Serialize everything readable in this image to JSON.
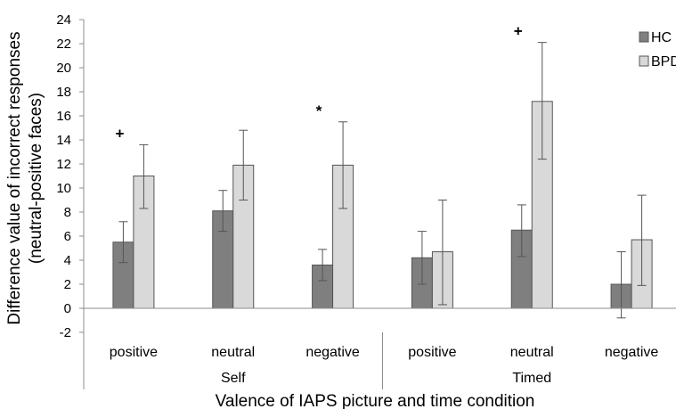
{
  "chart_data": {
    "type": "bar",
    "categories": [
      "positive",
      "neutral",
      "negative",
      "positive",
      "neutral",
      "negative"
    ],
    "groups": [
      {
        "label": "Self",
        "categories": [
          "positive",
          "neutral",
          "negative"
        ]
      },
      {
        "label": "Timed",
        "categories": [
          "positive",
          "neutral",
          "negative"
        ]
      }
    ],
    "series": [
      {
        "name": "HC",
        "color": "#7f7f7f",
        "values": [
          5.5,
          8.1,
          3.6,
          4.2,
          6.5,
          2.0
        ],
        "error_low": [
          3.8,
          6.4,
          2.3,
          2.0,
          4.3,
          -0.8
        ],
        "error_high": [
          7.2,
          9.8,
          4.9,
          6.4,
          8.6,
          4.7
        ]
      },
      {
        "name": "BPD",
        "color": "#d9d9d9",
        "values": [
          11.0,
          11.9,
          11.9,
          4.7,
          17.2,
          5.7
        ],
        "error_low": [
          8.3,
          9.0,
          8.3,
          0.3,
          12.4,
          1.9
        ],
        "error_high": [
          13.6,
          14.8,
          15.5,
          9.0,
          22.1,
          9.4
        ]
      }
    ],
    "annotations": [
      {
        "text": "+",
        "category_index": 0
      },
      {
        "text": "*",
        "category_index": 2
      },
      {
        "text": "+",
        "category_index": 4
      }
    ],
    "ylim": [
      -2,
      24
    ],
    "yticks": [
      "-2",
      "0",
      "2",
      "4",
      "6",
      "8",
      "10",
      "12",
      "14",
      "16",
      "18",
      "20",
      "22",
      "24"
    ],
    "ylabel": "Difference value of incorrect responses",
    "ylabel2": "(neutral-positive faces)",
    "xlabel": "Valence of IAPS picture and time condition",
    "legend_position": "top-right",
    "grid": false
  }
}
